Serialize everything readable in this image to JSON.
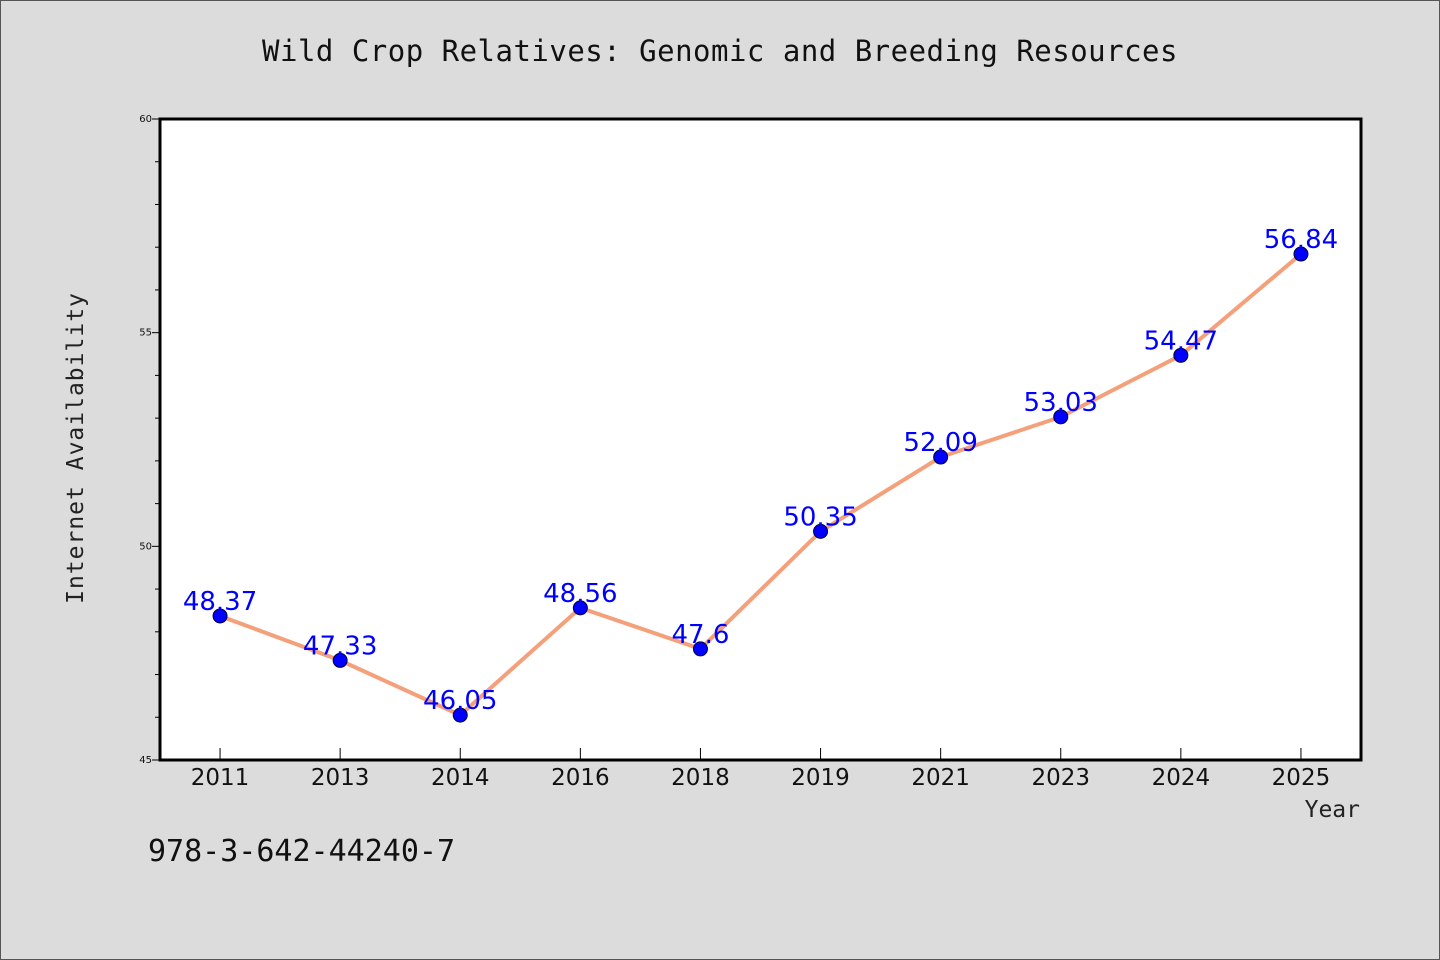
{
  "chart_data": {
    "type": "line",
    "title": "Wild Crop Relatives: Genomic and Breeding Resources",
    "xlabel": "Year",
    "ylabel": "Internet Availability",
    "categories": [
      "2011",
      "2013",
      "2014",
      "2016",
      "2018",
      "2019",
      "2021",
      "2023",
      "2024",
      "2025"
    ],
    "series": [
      {
        "values": [
          48.37,
          47.33,
          46.05,
          48.56,
          47.6,
          50.35,
          52.09,
          53.03,
          54.47,
          56.84
        ],
        "labels": [
          "48.37",
          "47.33",
          "46.05",
          "48.56",
          "47.6",
          "50.35",
          "52.09",
          "53.03",
          "54.47",
          "56.84"
        ],
        "line_color": "#f4a07a",
        "marker_color": "#0000ff"
      }
    ],
    "ylim": [
      45,
      60
    ],
    "yticks": [
      "45",
      "50",
      "55",
      "60"
    ],
    "grid": false,
    "legend": "none"
  },
  "footnote": "978-3-642-44240-7",
  "colors": {
    "background": "#dcdcdc",
    "plot_background": "#ffffff",
    "line": "#f4a07a",
    "marker": "#0000ff",
    "data_label": "#0000ff"
  }
}
